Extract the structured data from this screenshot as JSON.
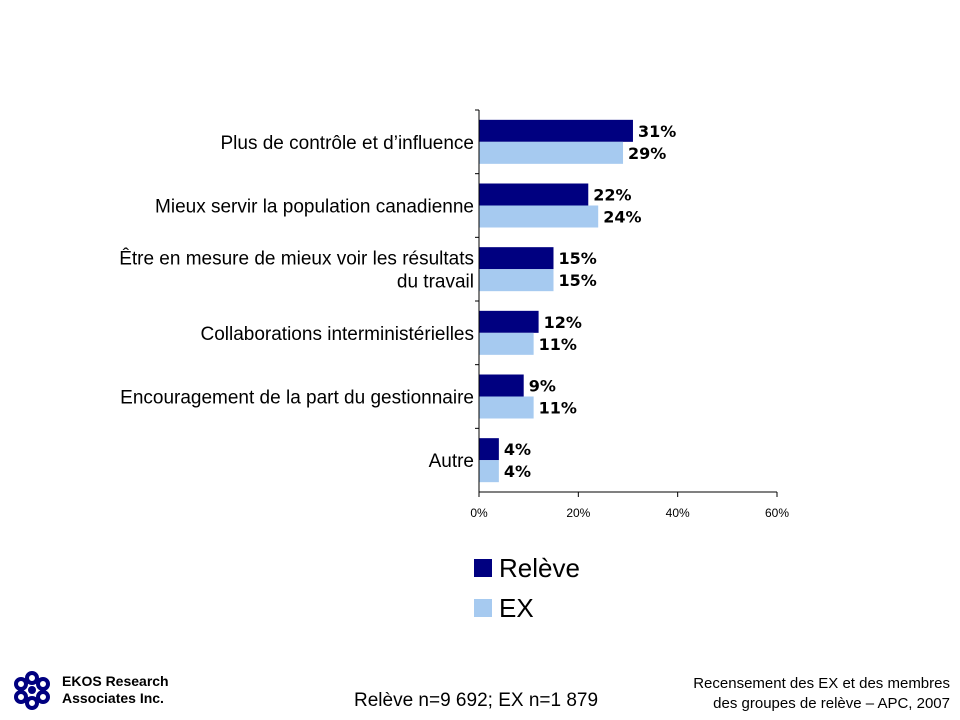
{
  "chart_data": {
    "type": "bar",
    "orientation": "horizontal",
    "categories": [
      [
        "Plus de contrôle et d’influence"
      ],
      [
        "Mieux servir la population canadienne"
      ],
      [
        "Être en mesure de mieux voir les résultats",
        "du travail"
      ],
      [
        "Collaborations interministérielles"
      ],
      [
        "Encouragement de la part du gestionnaire"
      ],
      [
        "Autre"
      ]
    ],
    "series": [
      {
        "name": "Relève",
        "color": "#000080",
        "values": [
          31,
          22,
          15,
          12,
          9,
          4
        ]
      },
      {
        "name": "EX",
        "color": "#a6caf0",
        "values": [
          29,
          24,
          15,
          11,
          11,
          4
        ]
      }
    ],
    "xlim": [
      0,
      60
    ],
    "xticks": [
      0,
      20,
      40,
      60
    ],
    "tick_suffix": "%",
    "value_suffix": "%",
    "grid": false,
    "legend_position": "bottom"
  },
  "footer": {
    "org_line1": "EKOS Research",
    "org_line2": "Associates Inc.",
    "sample": "Relève n=9 692; EX n=1 879",
    "source_line1": "Recensement des EX et des membres",
    "source_line2": "des groupes de relève – APC, 2007"
  }
}
